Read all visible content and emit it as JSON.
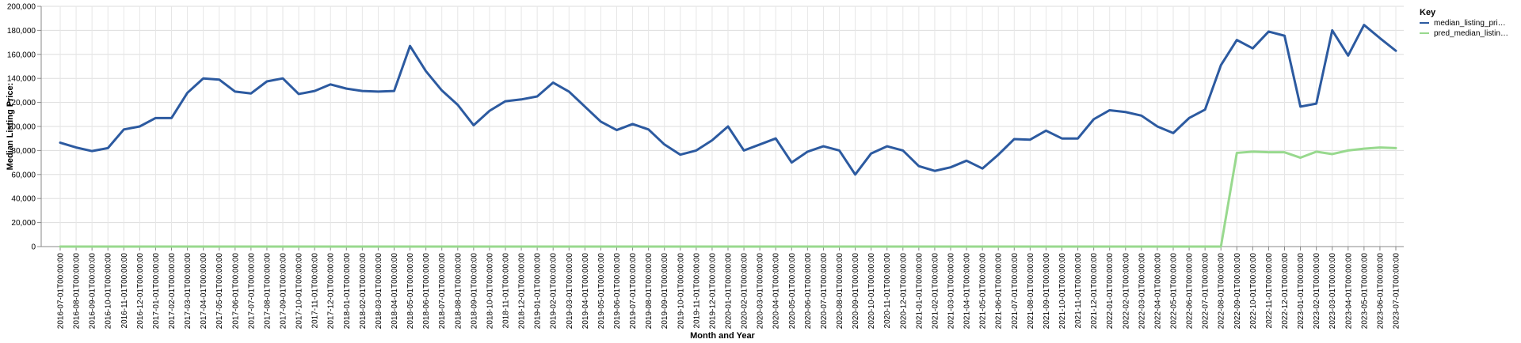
{
  "chart_data": {
    "type": "line",
    "xlabel": "Month and Year",
    "ylabel": "Median Listing Price:",
    "ylim": [
      0,
      200000
    ],
    "y_ticks": [
      "0",
      "20,000",
      "40,000",
      "60,000",
      "80,000",
      "100,000",
      "120,000",
      "140,000",
      "160,000",
      "180,000",
      "200,000"
    ],
    "grid": true,
    "legend": {
      "title": "Key",
      "placement": "top-right"
    },
    "x": [
      "2016-07-01T00:00:00",
      "2016-08-01T00:00:00",
      "2016-09-01T00:00:00",
      "2016-10-01T00:00:00",
      "2016-11-01T00:00:00",
      "2016-12-01T00:00:00",
      "2017-01-01T00:00:00",
      "2017-02-01T00:00:00",
      "2017-03-01T00:00:00",
      "2017-04-01T00:00:00",
      "2017-05-01T00:00:00",
      "2017-06-01T00:00:00",
      "2017-07-01T00:00:00",
      "2017-08-01T00:00:00",
      "2017-09-01T00:00:00",
      "2017-10-01T00:00:00",
      "2017-11-01T00:00:00",
      "2017-12-01T00:00:00",
      "2018-01-01T00:00:00",
      "2018-02-01T00:00:00",
      "2018-03-01T00:00:00",
      "2018-04-01T00:00:00",
      "2018-05-01T00:00:00",
      "2018-06-01T00:00:00",
      "2018-07-01T00:00:00",
      "2018-08-01T00:00:00",
      "2018-09-01T00:00:00",
      "2018-10-01T00:00:00",
      "2018-11-01T00:00:00",
      "2018-12-01T00:00:00",
      "2019-01-01T00:00:00",
      "2019-02-01T00:00:00",
      "2019-03-01T00:00:00",
      "2019-04-01T00:00:00",
      "2019-05-01T00:00:00",
      "2019-06-01T00:00:00",
      "2019-07-01T00:00:00",
      "2019-08-01T00:00:00",
      "2019-09-01T00:00:00",
      "2019-10-01T00:00:00",
      "2019-11-01T00:00:00",
      "2019-12-01T00:00:00",
      "2020-01-01T00:00:00",
      "2020-02-01T00:00:00",
      "2020-03-01T00:00:00",
      "2020-04-01T00:00:00",
      "2020-05-01T00:00:00",
      "2020-06-01T00:00:00",
      "2020-07-01T00:00:00",
      "2020-08-01T00:00:00",
      "2020-09-01T00:00:00",
      "2020-10-01T00:00:00",
      "2020-11-01T00:00:00",
      "2020-12-01T00:00:00",
      "2021-01-01T00:00:00",
      "2021-02-01T00:00:00",
      "2021-03-01T00:00:00",
      "2021-04-01T00:00:00",
      "2021-05-01T00:00:00",
      "2021-06-01T00:00:00",
      "2021-07-01T00:00:00",
      "2021-08-01T00:00:00",
      "2021-09-01T00:00:00",
      "2021-10-01T00:00:00",
      "2021-11-01T00:00:00",
      "2021-12-01T00:00:00",
      "2022-01-01T00:00:00",
      "2022-02-01T00:00:00",
      "2022-03-01T00:00:00",
      "2022-04-01T00:00:00",
      "2022-05-01T00:00:00",
      "2022-06-01T00:00:00",
      "2022-07-01T00:00:00",
      "2022-08-01T00:00:00",
      "2022-09-01T00:00:00",
      "2022-10-01T00:00:00",
      "2022-11-01T00:00:00",
      "2022-12-01T00:00:00",
      "2023-01-01T00:00:00",
      "2023-02-01T00:00:00",
      "2023-03-01T00:00:00",
      "2023-04-01T00:00:00",
      "2023-05-01T00:00:00",
      "2023-06-01T00:00:00",
      "2023-07-01T00:00:00"
    ],
    "series": [
      {
        "name": "median_listing_pri…",
        "color": "#2c5aa0",
        "values": [
          86500,
          82500,
          79500,
          82000,
          97500,
          100000,
          107000,
          107000,
          128000,
          140000,
          139000,
          129000,
          127500,
          137500,
          140000,
          127000,
          129500,
          135000,
          131500,
          129500,
          129000,
          129500,
          167000,
          146000,
          130000,
          118000,
          101000,
          113000,
          121000,
          122500,
          125000,
          136500,
          129000,
          116500,
          104000,
          97000,
          102000,
          97500,
          85000,
          76500,
          80000,
          88500,
          100000,
          80000,
          85000,
          90000,
          70000,
          79000,
          83500,
          80000,
          60000,
          77500,
          83500,
          80000,
          67000,
          63000,
          66000,
          71500,
          65000,
          76500,
          89500,
          89000,
          96500,
          90000,
          90000,
          106000,
          113500,
          112000,
          109000,
          100000,
          94500,
          107000,
          114000,
          151000,
          172000,
          165000,
          179000,
          175500,
          116500,
          119000,
          180000,
          159000,
          184500,
          173500,
          163000
        ]
      },
      {
        "name": "pred_median_listin…",
        "color": "#98d98e",
        "values": [
          0,
          0,
          0,
          0,
          0,
          0,
          0,
          0,
          0,
          0,
          0,
          0,
          0,
          0,
          0,
          0,
          0,
          0,
          0,
          0,
          0,
          0,
          0,
          0,
          0,
          0,
          0,
          0,
          0,
          0,
          0,
          0,
          0,
          0,
          0,
          0,
          0,
          0,
          0,
          0,
          0,
          0,
          0,
          0,
          0,
          0,
          0,
          0,
          0,
          0,
          0,
          0,
          0,
          0,
          0,
          0,
          0,
          0,
          0,
          0,
          0,
          0,
          0,
          0,
          0,
          0,
          0,
          0,
          0,
          0,
          0,
          0,
          0,
          0,
          78000,
          79000,
          78500,
          78500,
          74000,
          79000,
          77000,
          80000,
          81500,
          82500,
          82000
        ]
      }
    ]
  }
}
